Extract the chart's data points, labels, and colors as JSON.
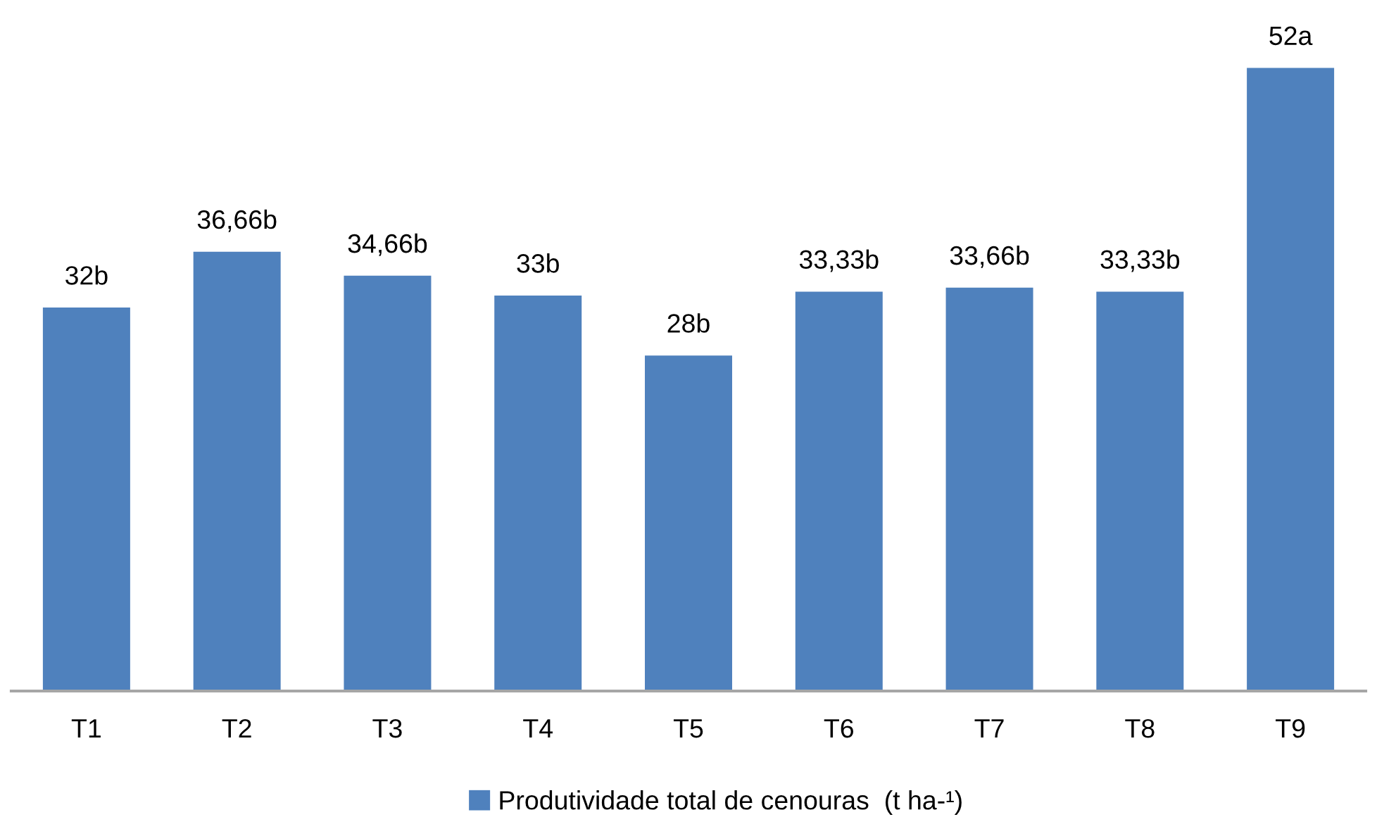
{
  "chart_data": {
    "type": "bar",
    "categories": [
      "T1",
      "T2",
      "T3",
      "T4",
      "T5",
      "T6",
      "T7",
      "T8",
      "T9"
    ],
    "series": [
      {
        "name": "Produtividade total de cenouras  (t ha-¹)",
        "color": "#4f81bd",
        "values": [
          32,
          36.66,
          34.66,
          33,
          28,
          33.33,
          33.66,
          33.33,
          52
        ],
        "value_labels": [
          "32b",
          "36,66b",
          "34,66b",
          "33b",
          "28b",
          "33,33b",
          "33,66b",
          "33,33b",
          "52a"
        ]
      }
    ],
    "legend": "bottom",
    "tick_labels": "x"
  }
}
